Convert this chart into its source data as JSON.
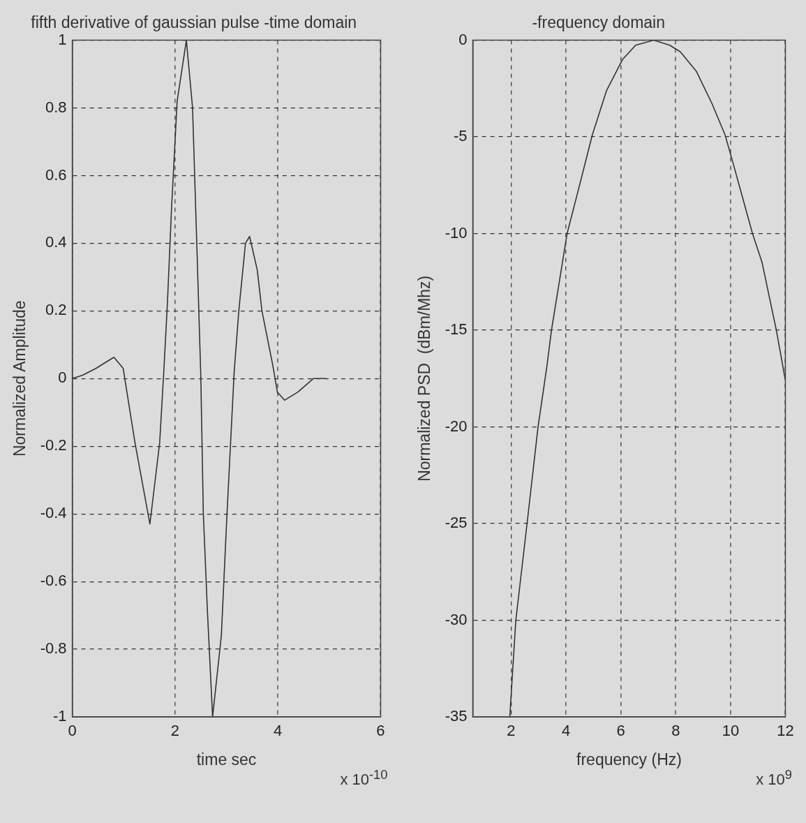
{
  "chart_data": [
    {
      "type": "line",
      "title": "fifth derivative of gaussian pulse -time domain",
      "xlabel": "time sec",
      "ylabel": "Normalized Amplitude",
      "annotations": [
        "x 10$^{-10}$"
      ],
      "x": [
        0,
        0.2,
        0.46,
        0.81,
        0.99,
        1.22,
        1.51,
        1.7,
        1.78,
        1.85,
        1.93,
        2.04,
        2.22,
        2.34,
        2.42,
        2.5,
        2.55,
        2.63,
        2.73,
        2.9,
        3.01,
        3.15,
        3.24,
        3.37,
        3.45,
        3.6,
        3.69,
        3.9,
        3.99,
        4.13,
        4.39,
        4.69,
        4.94
      ],
      "values": [
        0,
        0.01,
        0.03,
        0.063,
        0.03,
        -0.19,
        -0.43,
        -0.19,
        0.02,
        0.22,
        0.5,
        0.82,
        1.0,
        0.8,
        0.41,
        0.01,
        -0.4,
        -0.69,
        -1.0,
        -0.76,
        -0.4,
        0.02,
        0.2,
        0.4,
        0.42,
        0.32,
        0.2,
        0.04,
        -0.04,
        -0.064,
        -0.04,
        0,
        0
      ],
      "color": "#333333",
      "xlim": [
        0,
        6
      ],
      "xticks": [
        0,
        2,
        4,
        6
      ],
      "ylim": [
        -1,
        1
      ],
      "yticks": [
        -1,
        -0.8,
        -0.6,
        -0.4,
        -0.2,
        0,
        0.2,
        0.4,
        0.6,
        0.8,
        1
      ],
      "grid": true
    },
    {
      "type": "line",
      "title": "-frequency domain",
      "xlabel": "frequency (Hz)",
      "ylabel": "Normalized PSD  (dBm/Mhz)",
      "annotations": [
        "x 10$^{9}$"
      ],
      "x": [
        1.95,
        2.17,
        2.58,
        2.98,
        3.3,
        3.47,
        4.04,
        4.44,
        4.96,
        5.48,
        6.06,
        6.54,
        7.2,
        7.78,
        8.17,
        8.75,
        9.33,
        9.8,
        10.1,
        10.8,
        11.15,
        11.67,
        12
      ],
      "values": [
        -35,
        -30,
        -25,
        -20,
        -16.9,
        -15,
        -10,
        -7.8,
        -4.9,
        -2.6,
        -1,
        -0.26,
        0,
        -0.26,
        -0.6,
        -1.6,
        -3.3,
        -4.9,
        -6.4,
        -10,
        -11.5,
        -15,
        -17.6
      ],
      "color": "#333333",
      "xlim": [
        0.6,
        12
      ],
      "xticks": [
        2,
        4,
        6,
        8,
        10,
        12
      ],
      "ylim": [
        -35,
        0
      ],
      "yticks": [
        -35,
        -30,
        -25,
        -20,
        -15,
        -10,
        -5,
        0
      ],
      "grid": true
    }
  ]
}
